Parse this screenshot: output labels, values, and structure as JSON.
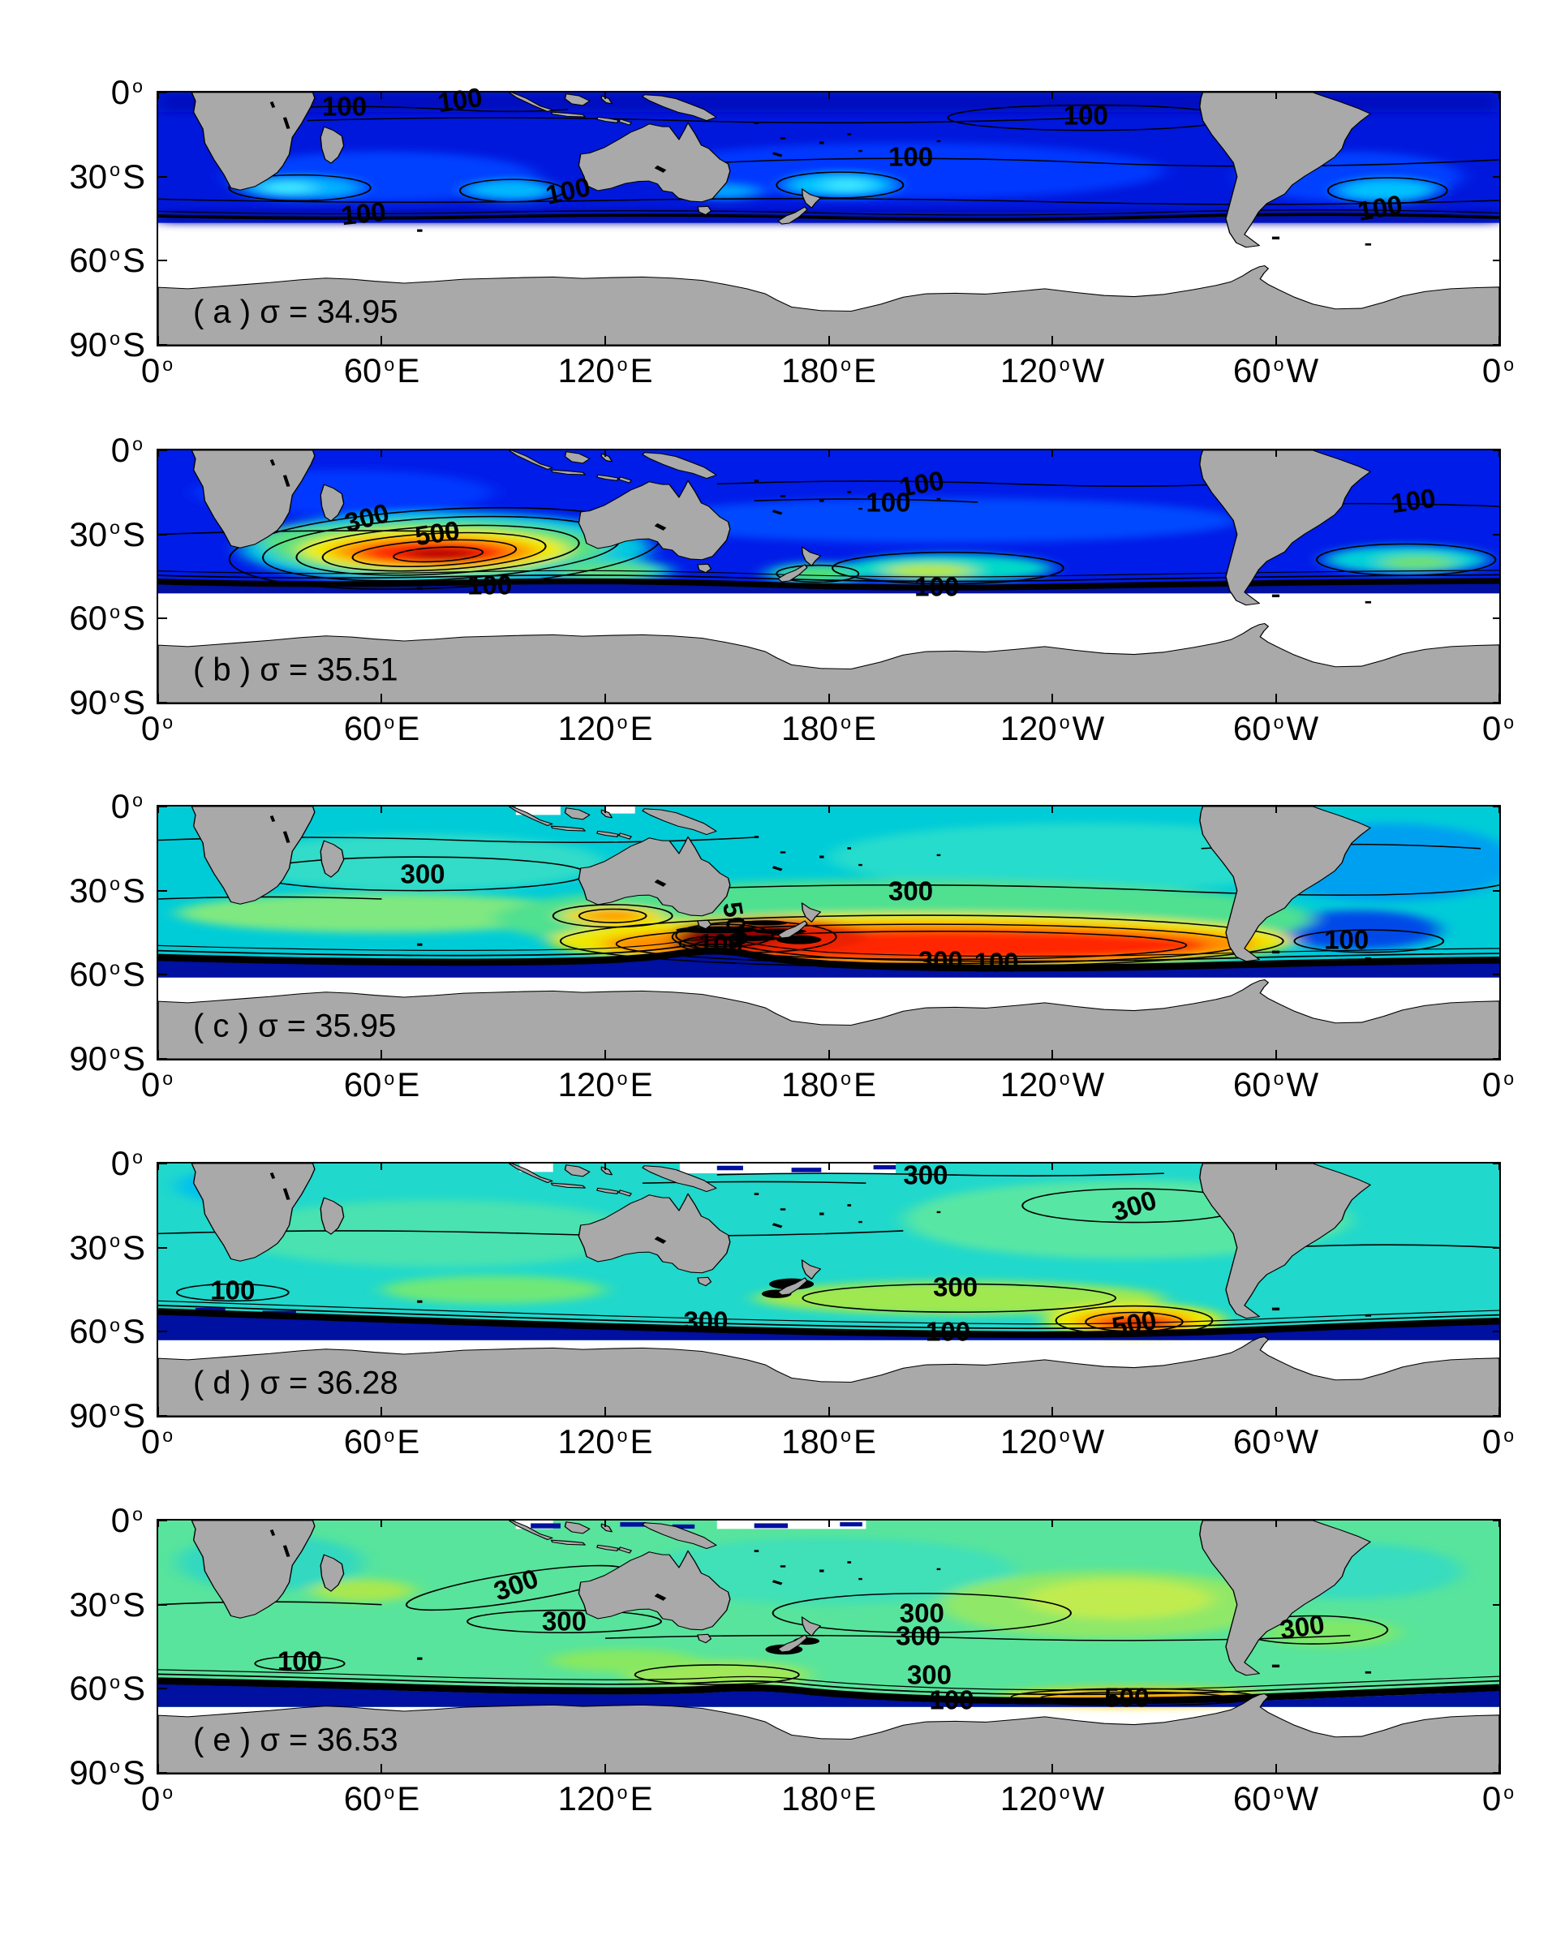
{
  "figure": {
    "kind": "multi-panel contour map figure",
    "background": "#ffffff",
    "colors": {
      "land": "#a9a9a9",
      "coastline": "#000000",
      "no_data": "#ffffff",
      "contour_line": "#000000",
      "colormap_name": "jet",
      "colormap_stops": [
        "#000080",
        "#0010a0",
        "#0020ff",
        "#00c0ff",
        "#00e0d0",
        "#60e890",
        "#b8e840",
        "#f0e800",
        "#ff9000",
        "#ff2000",
        "#a00000",
        "#700000"
      ]
    }
  },
  "chart_data": {
    "type": "heatmap",
    "subtype": "geographic contour maps, Southern Hemisphere oceans, MATLAB-style",
    "colormap": "jet",
    "lon_range_deg_e": [
      0,
      360
    ],
    "lat_range_deg_s": [
      0,
      90
    ],
    "contour_values_labeled": [
      100,
      300,
      500
    ],
    "x_axis": {
      "ticks": [
        {
          "lon": 0,
          "value": "0",
          "suffix": ""
        },
        {
          "lon": 60,
          "value": "60",
          "suffix": "E"
        },
        {
          "lon": 120,
          "value": "120",
          "suffix": "E"
        },
        {
          "lon": 180,
          "value": "180",
          "suffix": "E"
        },
        {
          "lon": 240,
          "value": "120",
          "suffix": "W"
        },
        {
          "lon": 300,
          "value": "60",
          "suffix": "W"
        },
        {
          "lon": 360,
          "value": "0",
          "suffix": ""
        }
      ]
    },
    "y_axis": {
      "ticks": [
        {
          "lat": 0,
          "value": "0",
          "suffix": ""
        },
        {
          "lat": 30,
          "value": "30",
          "suffix": "S"
        },
        {
          "lat": 60,
          "value": "60",
          "suffix": "S"
        },
        {
          "lat": 90,
          "value": "90",
          "suffix": "S"
        }
      ]
    },
    "panels": [
      {
        "id": "a",
        "label": "( a ) σ = 34.95",
        "sigma": 34.95,
        "data_southern_limit_deg_s": 46,
        "contour_labels": [
          {
            "value": 100,
            "lon": 50,
            "lat": 5,
            "rot": 0
          },
          {
            "value": 100,
            "lon": 81,
            "lat": 2.5,
            "rot": -8
          },
          {
            "value": 100,
            "lon": 249,
            "lat": 8,
            "rot": 0
          },
          {
            "value": 100,
            "lon": 202,
            "lat": 23,
            "rot": 0
          },
          {
            "value": 100,
            "lon": 110,
            "lat": 35,
            "rot": -12
          },
          {
            "value": 100,
            "lon": 55,
            "lat": 43,
            "rot": -6
          },
          {
            "value": 100,
            "lon": 328,
            "lat": 41,
            "rot": -10
          }
        ]
      },
      {
        "id": "b",
        "label": "( b ) σ = 35.51",
        "sigma": 35.51,
        "data_southern_limit_deg_s": 51,
        "contour_labels": [
          {
            "value": 100,
            "lon": 205,
            "lat": 12,
            "rot": -10
          },
          {
            "value": 100,
            "lon": 196,
            "lat": 18.5,
            "rot": 0
          },
          {
            "value": 300,
            "lon": 56,
            "lat": 24,
            "rot": -15
          },
          {
            "value": 500,
            "lon": 75,
            "lat": 29.5,
            "rot": -8
          },
          {
            "value": 100,
            "lon": 89,
            "lat": 48,
            "rot": 0
          },
          {
            "value": 100,
            "lon": 209,
            "lat": 48.5,
            "rot": 0
          },
          {
            "value": 100,
            "lon": 337,
            "lat": 18,
            "rot": -8
          }
        ]
      },
      {
        "id": "c",
        "label": "( c ) σ = 35.95",
        "sigma": 35.95,
        "data_southern_limit_deg_s": 61,
        "contour_labels": [
          {
            "value": 300,
            "lon": 71,
            "lat": 24,
            "rot": 0
          },
          {
            "value": 300,
            "lon": 202,
            "lat": 30,
            "rot": 0
          },
          {
            "value": 500,
            "lon": 155,
            "lat": 42,
            "rot": 80
          },
          {
            "value": 100,
            "lon": 151,
            "lat": 49,
            "rot": 0
          },
          {
            "value": 300,
            "lon": 210,
            "lat": 55,
            "rot": 0
          },
          {
            "value": 100,
            "lon": 225,
            "lat": 55.5,
            "rot": 0
          },
          {
            "value": 100,
            "lon": 319,
            "lat": 47.5,
            "rot": 0
          }
        ]
      },
      {
        "id": "d",
        "label": "( d ) σ = 36.28",
        "sigma": 36.28,
        "data_southern_limit_deg_s": 63,
        "contour_labels": [
          {
            "value": 300,
            "lon": 206,
            "lat": 4,
            "rot": 0
          },
          {
            "value": 300,
            "lon": 262,
            "lat": 15,
            "rot": -18
          },
          {
            "value": 300,
            "lon": 214,
            "lat": 44,
            "rot": 0
          },
          {
            "value": 100,
            "lon": 20,
            "lat": 45,
            "rot": 0
          },
          {
            "value": 300,
            "lon": 147,
            "lat": 56,
            "rot": 0
          },
          {
            "value": 500,
            "lon": 262,
            "lat": 57,
            "rot": -10
          },
          {
            "value": 100,
            "lon": 212,
            "lat": 60,
            "rot": 0
          }
        ]
      },
      {
        "id": "e",
        "label": "( e ) σ = 36.53",
        "sigma": 36.53,
        "data_southern_limit_deg_s": 66,
        "contour_labels": [
          {
            "value": 300,
            "lon": 96,
            "lat": 23,
            "rot": -20
          },
          {
            "value": 300,
            "lon": 109,
            "lat": 36,
            "rot": 0
          },
          {
            "value": 300,
            "lon": 205,
            "lat": 33,
            "rot": 0
          },
          {
            "value": 300,
            "lon": 307,
            "lat": 38,
            "rot": -8
          },
          {
            "value": 300,
            "lon": 204,
            "lat": 41,
            "rot": 0
          },
          {
            "value": 300,
            "lon": 207,
            "lat": 55,
            "rot": 0
          },
          {
            "value": 100,
            "lon": 213,
            "lat": 64,
            "rot": 0
          },
          {
            "value": 100,
            "lon": 38,
            "lat": 50,
            "rot": 0
          },
          {
            "value": 500,
            "lon": 260,
            "lat": 63,
            "rot": 0
          }
        ]
      }
    ]
  }
}
